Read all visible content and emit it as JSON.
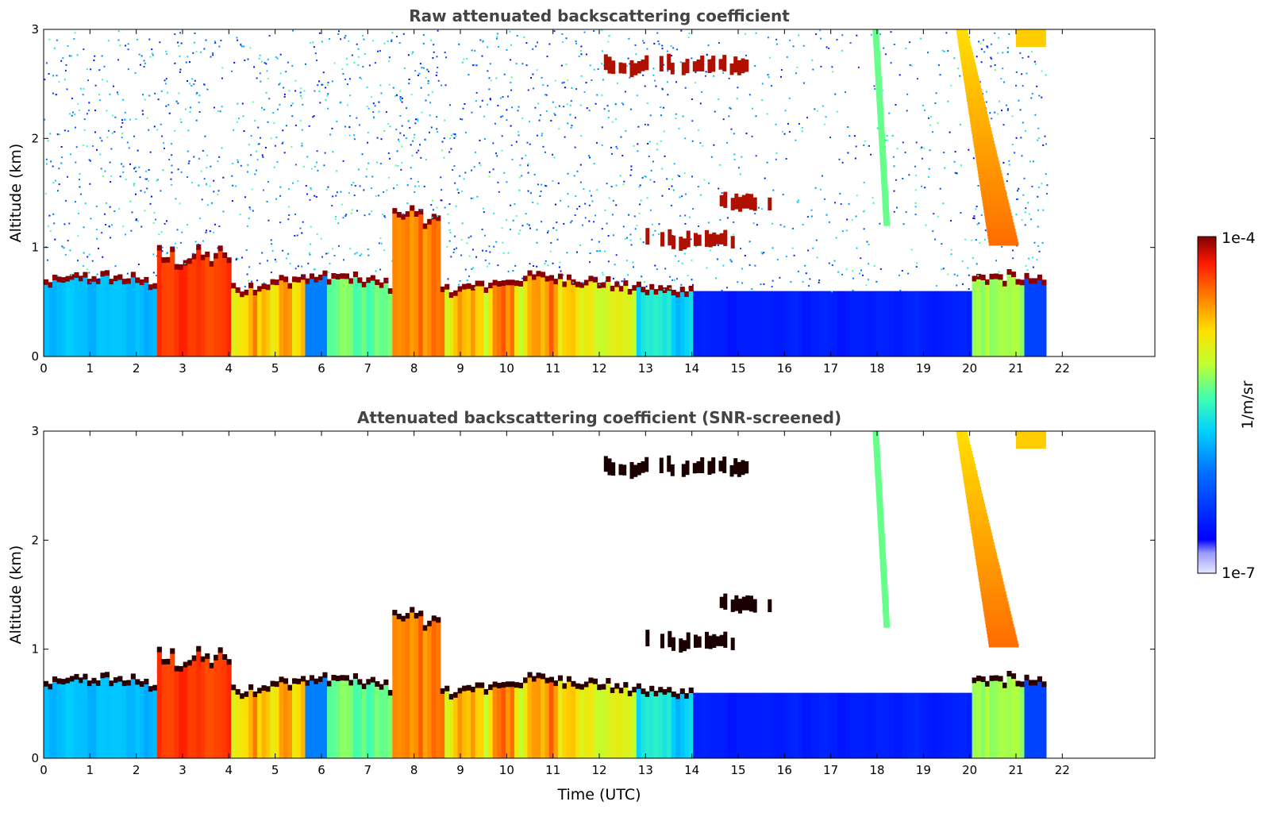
{
  "chart_data": [
    {
      "type": "heatmap",
      "title": "Raw attenuated backscattering coefficient",
      "ylabel": "Altitude (km)",
      "xlabel": "",
      "xlim": [
        0,
        24
      ],
      "ylim": [
        0,
        3
      ],
      "xticks": [
        "0",
        "1",
        "2",
        "3",
        "4",
        "5",
        "6",
        "7",
        "8",
        "9",
        "10",
        "11",
        "12",
        "13",
        "14",
        "15",
        "16",
        "17",
        "18",
        "19",
        "20",
        "21",
        "22"
      ],
      "yticks": [
        "0",
        "1",
        "2",
        "3"
      ],
      "data_extent_hours": [
        0,
        21.65
      ],
      "features": {
        "boundary_layer_top_km": 0.65,
        "clouds_aloft": [
          {
            "start_h": 12.1,
            "end_h": 15.2,
            "altitude_km": 2.6
          },
          {
            "start_h": 13.0,
            "end_h": 14.9,
            "altitude_km": 1.0
          },
          {
            "start_h": 14.6,
            "end_h": 15.8,
            "altitude_km": 1.35
          }
        ],
        "fall_streaks": [
          {
            "start_h": 17.9,
            "end_h": 18.3,
            "top_km": 3.0,
            "base_km": 1.2
          },
          {
            "start_h": 19.7,
            "end_h": 20.9,
            "top_km": 3.0,
            "base_km": 1.0
          }
        ],
        "cloud_top_right_start_h": 21.0
      }
    },
    {
      "type": "heatmap",
      "title": "Attenuated backscattering coefficient (SNR-screened)",
      "ylabel": "Altitude (km)",
      "xlabel": "Time (UTC)",
      "xlim": [
        0,
        24
      ],
      "ylim": [
        0,
        3
      ],
      "xticks": [
        "0",
        "1",
        "2",
        "3",
        "4",
        "5",
        "6",
        "7",
        "8",
        "9",
        "10",
        "11",
        "12",
        "13",
        "14",
        "15",
        "16",
        "17",
        "18",
        "19",
        "20",
        "21",
        "22"
      ],
      "yticks": [
        "0",
        "1",
        "2",
        "3"
      ],
      "data_extent_hours": [
        0,
        21.65
      ],
      "screened": true
    }
  ],
  "colorbar": {
    "label": "1/m/sr",
    "max_label": "1e-4",
    "min_label": "1e-7",
    "scale": "log",
    "range": [
      1e-07,
      0.0001
    ],
    "colormap": "jet"
  },
  "colors": {
    "background": "#ffffff",
    "frame": "#000000",
    "title": "#444444"
  }
}
